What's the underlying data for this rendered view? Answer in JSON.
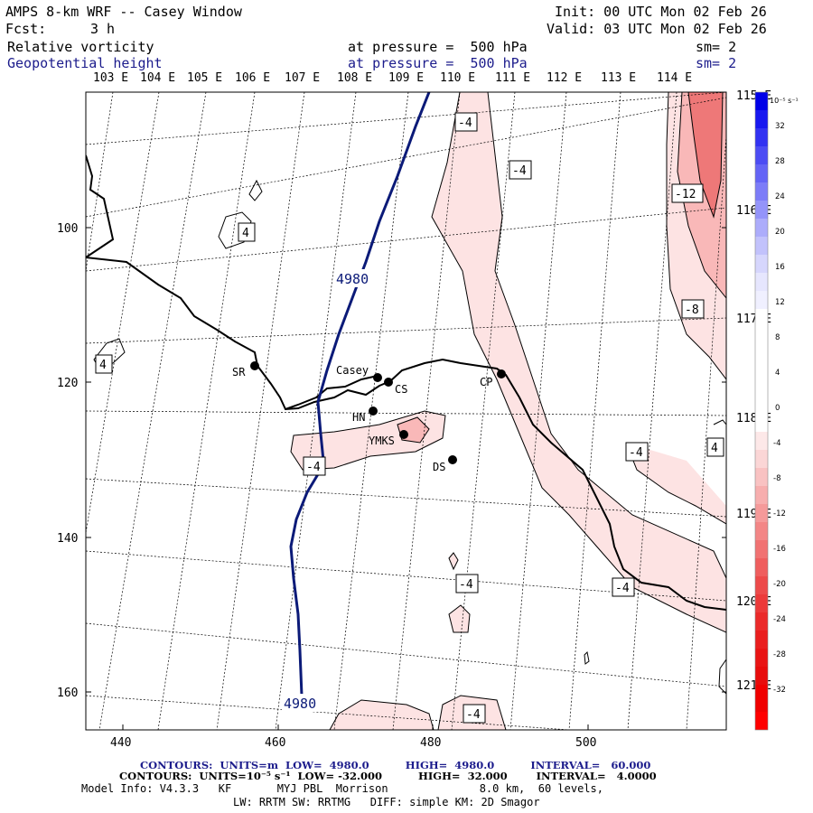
{
  "header": {
    "title": "AMPS 8-km WRF -- Casey Window",
    "init": "Init: 00 UTC Mon 02 Feb 26",
    "fcst_label": "Fcst:",
    "fcst_value": "3 h",
    "valid": "Valid: 03 UTC Mon 02 Feb 26",
    "field1": "Relative vorticity",
    "field1_level": "at pressure =  500 hPa",
    "field1_sm": "sm= 2",
    "field2": "Geopotential height",
    "field2_level": "at pressure =  500 hPa",
    "field2_sm": "sm= 2"
  },
  "map": {
    "lon_top_labels": [
      "103 E",
      "104 E",
      "105 E",
      "106 E",
      "107 E",
      "108 E",
      "109 E",
      "110 E",
      "111 E",
      "112 E",
      "113 E",
      "114 E"
    ],
    "lon_right_labels": [
      "115 E",
      "116 E",
      "117 E",
      "118 E",
      "119 E",
      "120 E",
      "121 E"
    ],
    "y_axis": [
      "100",
      "120",
      "140",
      "160"
    ],
    "x_axis": [
      "440",
      "460",
      "480",
      "500"
    ],
    "stations": [
      {
        "code": "SR"
      },
      {
        "code": "Casey"
      },
      {
        "code": "CS"
      },
      {
        "code": "HN"
      },
      {
        "code": "YMKS"
      },
      {
        "code": "DS"
      },
      {
        "code": "CP"
      }
    ],
    "contour_labels_vort": [
      "-4",
      "-4",
      "-12",
      "4",
      "-8",
      "4",
      "-4",
      "-4",
      "4",
      "-4",
      "-4",
      "-4"
    ],
    "contour_labels_height": [
      "4980",
      "4980"
    ],
    "colorbar_units": "10⁻⁵ s⁻¹",
    "colorbar_ticks": [
      "32",
      "28",
      "24",
      "20",
      "16",
      "12",
      "8",
      "4",
      "0",
      "-4",
      "-8",
      "-12",
      "-16",
      "-20",
      "-24",
      "-28",
      "-32"
    ],
    "colors": {
      "height_contour": "#0b1a78",
      "coast": "#000000",
      "pink_light": "#fde3e3",
      "pink_mid": "#f9b8b8",
      "pink_dark": "#ee7878"
    }
  },
  "footer": {
    "line1": "CONTOURS:  UNITS=m  LOW=  4980.0          HIGH=  4980.0          INTERVAL=   60.000",
    "line2": "CONTOURS:  UNITS=10⁻⁵ s⁻¹  LOW= -32.000          HIGH=  32.000        INTERVAL=   4.0000",
    "line3": "Model Info: V4.3.3   KF       MYJ PBL  Morrison              8.0 km,  60 levels,",
    "line4": "LW: RRTM SW: RRTMG   DIFF: simple KM: 2D Smagor"
  }
}
